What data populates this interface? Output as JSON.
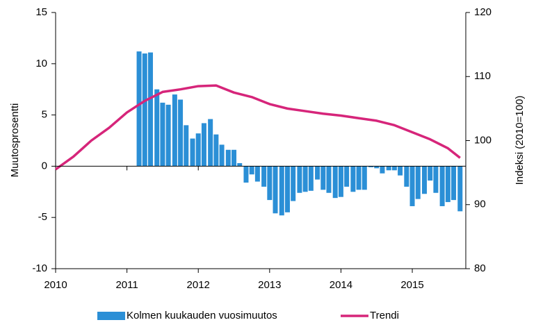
{
  "chart_data": {
    "type": "bar_line",
    "y_label": "Muutosprosentti",
    "y2_label": "Indeksi (2010=100)",
    "xlim": [
      2010,
      2015.75
    ],
    "xticks": [
      2010,
      2011,
      2012,
      2013,
      2014,
      2015
    ],
    "ylim": [
      -10,
      15
    ],
    "yticks": [
      -10,
      -5,
      0,
      5,
      10,
      15
    ],
    "y2lim": [
      80,
      120
    ],
    "y2ticks": [
      80,
      90,
      100,
      110,
      120
    ],
    "legend": "bottom",
    "series": [
      {
        "name": "Kolmen kuukauden vuosimuutos",
        "type": "bar",
        "color": "#2b8fd6",
        "x": [
          2011.17,
          2011.25,
          2011.33,
          2011.42,
          2011.5,
          2011.58,
          2011.67,
          2011.75,
          2011.83,
          2011.92,
          2012,
          2012.08,
          2012.17,
          2012.25,
          2012.33,
          2012.42,
          2012.5,
          2012.58,
          2012.67,
          2012.75,
          2012.83,
          2012.92,
          2013,
          2013.08,
          2013.17,
          2013.25,
          2013.33,
          2013.42,
          2013.5,
          2013.58,
          2013.67,
          2013.75,
          2013.83,
          2013.92,
          2014,
          2014.08,
          2014.17,
          2014.25,
          2014.33,
          2014.42,
          2014.5,
          2014.58,
          2014.67,
          2014.75,
          2014.83,
          2014.92,
          2015,
          2015.08,
          2015.17,
          2015.25,
          2015.33,
          2015.42,
          2015.5,
          2015.58,
          2015.67
        ],
        "values": [
          11.2,
          11.0,
          11.1,
          7.5,
          6.2,
          6.0,
          7.0,
          6.5,
          4.0,
          2.7,
          3.2,
          4.2,
          4.6,
          3.1,
          2.1,
          1.6,
          1.6,
          0.3,
          -1.6,
          -0.8,
          -1.5,
          -2.0,
          -3.3,
          -4.6,
          -4.8,
          -4.5,
          -3.4,
          -2.6,
          -2.5,
          -2.4,
          -1.3,
          -2.3,
          -2.6,
          -3.1,
          -3.0,
          -2.0,
          -2.5,
          -2.3,
          -2.3,
          -0.1,
          -0.2,
          -0.7,
          -0.4,
          -0.4,
          -0.9,
          -2.0,
          -3.9,
          -3.2,
          -2.7,
          -1.4,
          -2.6,
          -3.9,
          -3.5,
          -3.3,
          -4.4
        ]
      },
      {
        "name": "Trendi",
        "type": "line",
        "axis": "y2",
        "color": "#d6257a",
        "x": [
          2010,
          2010.25,
          2010.5,
          2010.75,
          2011,
          2011.25,
          2011.5,
          2011.75,
          2012,
          2012.25,
          2012.5,
          2012.75,
          2013,
          2013.25,
          2013.5,
          2013.75,
          2014,
          2014.25,
          2014.5,
          2014.75,
          2015,
          2015.25,
          2015.5,
          2015.67
        ],
        "values": [
          95.5,
          97.5,
          100.0,
          102.0,
          104.4,
          106.2,
          107.6,
          108.0,
          108.5,
          108.6,
          107.5,
          106.8,
          105.7,
          105.0,
          104.6,
          104.2,
          103.9,
          103.5,
          103.1,
          102.4,
          101.3,
          100.2,
          98.8,
          97.3
        ]
      }
    ]
  }
}
